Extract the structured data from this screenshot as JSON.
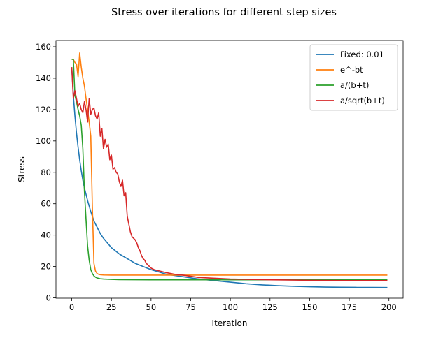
{
  "chart_data": {
    "type": "line",
    "title": "Stress over iterations for different step sizes",
    "xlabel": "Iteration",
    "ylabel": "Stress",
    "xlim": [
      -9.95,
      208.95
    ],
    "ylim": [
      -0.2,
      164
    ],
    "xticks": [
      0,
      25,
      50,
      75,
      100,
      125,
      150,
      175,
      200
    ],
    "yticks": [
      0,
      20,
      40,
      60,
      80,
      100,
      120,
      140,
      160
    ],
    "grid": false,
    "legend_position": "top-right",
    "series": [
      {
        "name": "Fixed: 0.01",
        "color": "#1f77b4",
        "x": [
          0,
          1,
          2,
          3,
          4,
          5,
          6,
          7,
          8,
          9,
          10,
          12,
          14,
          16,
          18,
          20,
          25,
          30,
          35,
          40,
          45,
          50,
          60,
          70,
          80,
          90,
          100,
          110,
          120,
          130,
          140,
          150,
          160,
          170,
          180,
          190,
          199
        ],
        "y": [
          147,
          129,
          116,
          105,
          96,
          88,
          81,
          75,
          70,
          66,
          62,
          55,
          49,
          45,
          41,
          38,
          32,
          28,
          25,
          22,
          20,
          18,
          15,
          13.5,
          12,
          11,
          10,
          9,
          8.3,
          7.8,
          7.4,
          7.1,
          6.9,
          6.8,
          6.7,
          6.7,
          6.6
        ]
      },
      {
        "name": "e^-bt",
        "color": "#ff7f0e",
        "x": [
          0,
          1,
          2,
          3,
          4,
          5,
          6,
          7,
          8,
          9,
          10,
          11,
          12,
          13,
          14,
          15,
          16,
          17,
          18,
          20,
          25,
          30,
          50,
          100,
          150,
          199
        ],
        "y": [
          152,
          152,
          150,
          149,
          141,
          156,
          147,
          140,
          135,
          127,
          120,
          112,
          103,
          58,
          22,
          17,
          15.5,
          15,
          14.8,
          14.6,
          14.5,
          14.5,
          14.5,
          14.5,
          14.5,
          14.5
        ]
      },
      {
        "name": "a/(b+t)",
        "color": "#2ca02c",
        "x": [
          0,
          1,
          2,
          3,
          4,
          5,
          6,
          7,
          8,
          9,
          10,
          11,
          12,
          13,
          14,
          15,
          16,
          17,
          18,
          20,
          25,
          30,
          50,
          100,
          150,
          199
        ],
        "y": [
          152,
          152,
          129,
          125,
          120,
          116,
          110,
          95,
          68,
          50,
          33,
          24,
          18,
          15.5,
          14,
          13.2,
          12.7,
          12.4,
          12.2,
          12,
          11.8,
          11.6,
          11.5,
          11.5,
          11.5,
          11.5
        ]
      },
      {
        "name": "a/sqrt(b+t)",
        "color": "#d62728",
        "x": [
          0,
          1,
          2,
          3,
          4,
          5,
          6,
          7,
          8,
          9,
          10,
          11,
          12,
          13,
          14,
          15,
          16,
          17,
          18,
          19,
          20,
          21,
          22,
          23,
          24,
          25,
          26,
          27,
          28,
          29,
          30,
          31,
          32,
          33,
          34,
          35,
          36,
          37,
          38,
          39,
          40,
          41,
          42,
          43,
          44,
          45,
          46,
          47,
          48,
          49,
          50,
          52,
          54,
          56,
          58,
          60,
          65,
          70,
          75,
          80,
          90,
          100,
          125,
          150,
          175,
          199
        ],
        "y": [
          147,
          127,
          132,
          127,
          122,
          124,
          120,
          118,
          125,
          120,
          112,
          127,
          117,
          120,
          121,
          116,
          114,
          118,
          103,
          108,
          95,
          101,
          96,
          98,
          88,
          91,
          82,
          83,
          80,
          79,
          74,
          71,
          75,
          65,
          67,
          52,
          47,
          42,
          39,
          38,
          37,
          35,
          32,
          30,
          27,
          25,
          24,
          22,
          21,
          20,
          19,
          18,
          17.5,
          17,
          16.5,
          16,
          15,
          14.5,
          13.8,
          13,
          12.5,
          12,
          11.5,
          11.2,
          11,
          11
        ]
      }
    ]
  }
}
